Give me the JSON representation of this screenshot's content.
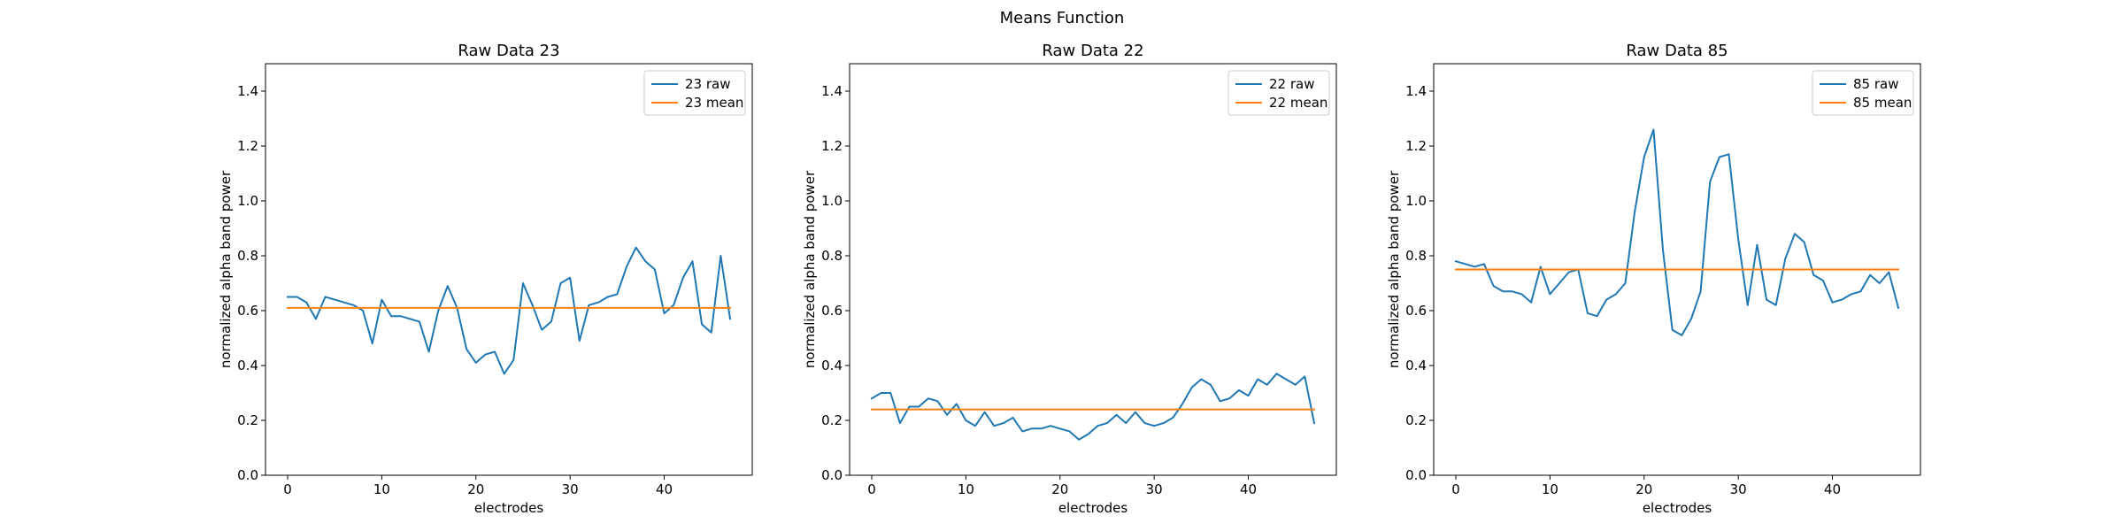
{
  "figure": {
    "suptitle": "Means Function"
  },
  "colors": {
    "raw": "#1f77b4",
    "mean": "#ff7f0e"
  },
  "chart_data": [
    {
      "type": "line",
      "title": "Raw Data 23",
      "xlabel": "electrodes",
      "ylabel": "normalized alpha band power",
      "xlim": [
        -2.35,
        49.35
      ],
      "ylim": [
        0.0,
        1.5
      ],
      "xticks": [
        0,
        10,
        20,
        30,
        40
      ],
      "yticks": [
        0.0,
        0.2,
        0.4,
        0.6,
        0.8,
        1.0,
        1.2,
        1.4
      ],
      "legend": "top-right",
      "x": [
        0,
        1,
        2,
        3,
        4,
        5,
        6,
        7,
        8,
        9,
        10,
        11,
        12,
        13,
        14,
        15,
        16,
        17,
        18,
        19,
        20,
        21,
        22,
        23,
        24,
        25,
        26,
        27,
        28,
        29,
        30,
        31,
        32,
        33,
        34,
        35,
        36,
        37,
        38,
        39,
        40,
        41,
        42,
        43,
        44,
        45,
        46,
        47
      ],
      "series": [
        {
          "name": "23 raw",
          "color": "#1f77b4",
          "values": [
            0.65,
            0.65,
            0.63,
            0.57,
            0.65,
            0.64,
            0.63,
            0.62,
            0.6,
            0.48,
            0.64,
            0.58,
            0.58,
            0.57,
            0.56,
            0.45,
            0.6,
            0.69,
            0.61,
            0.46,
            0.41,
            0.44,
            0.45,
            0.37,
            0.42,
            0.7,
            0.62,
            0.53,
            0.56,
            0.7,
            0.72,
            0.49,
            0.62,
            0.63,
            0.65,
            0.66,
            0.76,
            0.83,
            0.78,
            0.75,
            0.59,
            0.62,
            0.72,
            0.78,
            0.55,
            0.52,
            0.8,
            0.57
          ]
        },
        {
          "name": "23 mean",
          "color": "#ff7f0e",
          "values": [
            0.61,
            0.61,
            0.61,
            0.61,
            0.61,
            0.61,
            0.61,
            0.61,
            0.61,
            0.61,
            0.61,
            0.61,
            0.61,
            0.61,
            0.61,
            0.61,
            0.61,
            0.61,
            0.61,
            0.61,
            0.61,
            0.61,
            0.61,
            0.61,
            0.61,
            0.61,
            0.61,
            0.61,
            0.61,
            0.61,
            0.61,
            0.61,
            0.61,
            0.61,
            0.61,
            0.61,
            0.61,
            0.61,
            0.61,
            0.61,
            0.61,
            0.61,
            0.61,
            0.61,
            0.61,
            0.61,
            0.61,
            0.61
          ]
        }
      ]
    },
    {
      "type": "line",
      "title": "Raw Data 22",
      "xlabel": "electrodes",
      "ylabel": "normalized alpha band power",
      "xlim": [
        -2.35,
        49.35
      ],
      "ylim": [
        0.0,
        1.5
      ],
      "xticks": [
        0,
        10,
        20,
        30,
        40
      ],
      "yticks": [
        0.0,
        0.2,
        0.4,
        0.6,
        0.8,
        1.0,
        1.2,
        1.4
      ],
      "legend": "top-right",
      "x": [
        0,
        1,
        2,
        3,
        4,
        5,
        6,
        7,
        8,
        9,
        10,
        11,
        12,
        13,
        14,
        15,
        16,
        17,
        18,
        19,
        20,
        21,
        22,
        23,
        24,
        25,
        26,
        27,
        28,
        29,
        30,
        31,
        32,
        33,
        34,
        35,
        36,
        37,
        38,
        39,
        40,
        41,
        42,
        43,
        44,
        45,
        46,
        47
      ],
      "series": [
        {
          "name": "22 raw",
          "color": "#1f77b4",
          "values": [
            0.28,
            0.3,
            0.3,
            0.19,
            0.25,
            0.25,
            0.28,
            0.27,
            0.22,
            0.26,
            0.2,
            0.18,
            0.23,
            0.18,
            0.19,
            0.21,
            0.16,
            0.17,
            0.17,
            0.18,
            0.17,
            0.16,
            0.13,
            0.15,
            0.18,
            0.19,
            0.22,
            0.19,
            0.23,
            0.19,
            0.18,
            0.19,
            0.21,
            0.26,
            0.32,
            0.35,
            0.33,
            0.27,
            0.28,
            0.31,
            0.29,
            0.35,
            0.33,
            0.37,
            0.35,
            0.33,
            0.36,
            0.19
          ]
        },
        {
          "name": "22 mean",
          "color": "#ff7f0e",
          "values": [
            0.24,
            0.24,
            0.24,
            0.24,
            0.24,
            0.24,
            0.24,
            0.24,
            0.24,
            0.24,
            0.24,
            0.24,
            0.24,
            0.24,
            0.24,
            0.24,
            0.24,
            0.24,
            0.24,
            0.24,
            0.24,
            0.24,
            0.24,
            0.24,
            0.24,
            0.24,
            0.24,
            0.24,
            0.24,
            0.24,
            0.24,
            0.24,
            0.24,
            0.24,
            0.24,
            0.24,
            0.24,
            0.24,
            0.24,
            0.24,
            0.24,
            0.24,
            0.24,
            0.24,
            0.24,
            0.24,
            0.24,
            0.24
          ]
        }
      ]
    },
    {
      "type": "line",
      "title": "Raw Data 85",
      "xlabel": "electrodes",
      "ylabel": "normalized alpha band power",
      "xlim": [
        -2.35,
        49.35
      ],
      "ylim": [
        0.0,
        1.5
      ],
      "xticks": [
        0,
        10,
        20,
        30,
        40
      ],
      "yticks": [
        0.0,
        0.2,
        0.4,
        0.6,
        0.8,
        1.0,
        1.2,
        1.4
      ],
      "legend": "top-right",
      "x": [
        0,
        1,
        2,
        3,
        4,
        5,
        6,
        7,
        8,
        9,
        10,
        11,
        12,
        13,
        14,
        15,
        16,
        17,
        18,
        19,
        20,
        21,
        22,
        23,
        24,
        25,
        26,
        27,
        28,
        29,
        30,
        31,
        32,
        33,
        34,
        35,
        36,
        37,
        38,
        39,
        40,
        41,
        42,
        43,
        44,
        45,
        46,
        47
      ],
      "series": [
        {
          "name": "85 raw",
          "color": "#1f77b4",
          "values": [
            0.78,
            0.77,
            0.76,
            0.77,
            0.69,
            0.67,
            0.67,
            0.66,
            0.63,
            0.76,
            0.66,
            0.7,
            0.74,
            0.75,
            0.59,
            0.58,
            0.64,
            0.66,
            0.7,
            0.96,
            1.16,
            1.26,
            0.82,
            0.53,
            0.51,
            0.57,
            0.67,
            1.07,
            1.16,
            1.17,
            0.86,
            0.62,
            0.84,
            0.64,
            0.62,
            0.79,
            0.88,
            0.85,
            0.73,
            0.71,
            0.63,
            0.64,
            0.66,
            0.67,
            0.73,
            0.7,
            0.74,
            0.61
          ]
        },
        {
          "name": "85 mean",
          "color": "#ff7f0e",
          "values": [
            0.75,
            0.75,
            0.75,
            0.75,
            0.75,
            0.75,
            0.75,
            0.75,
            0.75,
            0.75,
            0.75,
            0.75,
            0.75,
            0.75,
            0.75,
            0.75,
            0.75,
            0.75,
            0.75,
            0.75,
            0.75,
            0.75,
            0.75,
            0.75,
            0.75,
            0.75,
            0.75,
            0.75,
            0.75,
            0.75,
            0.75,
            0.75,
            0.75,
            0.75,
            0.75,
            0.75,
            0.75,
            0.75,
            0.75,
            0.75,
            0.75,
            0.75,
            0.75,
            0.75,
            0.75,
            0.75,
            0.75,
            0.75
          ]
        }
      ]
    }
  ]
}
